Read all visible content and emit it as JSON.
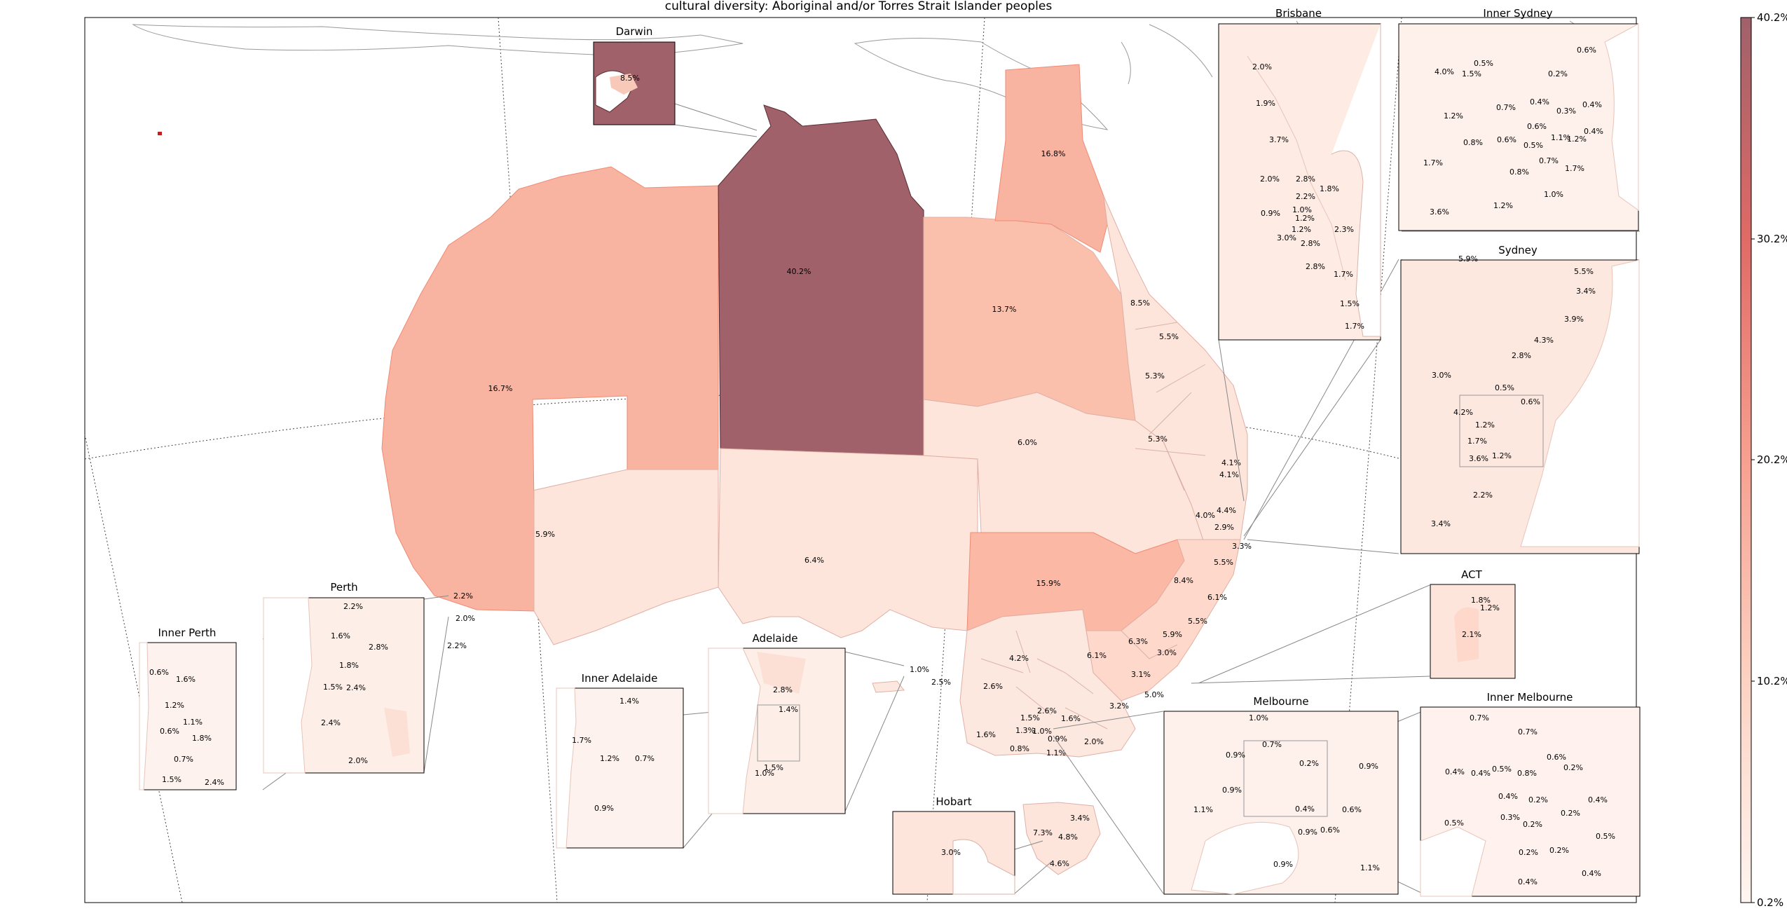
{
  "title": "cultural diversity: Aboriginal and/or Torres Strait Islander peoples",
  "colorbar": {
    "ticks": [
      "40.2%",
      "30.2%",
      "20.2%",
      "10.2%",
      "0.2%"
    ],
    "min": 0.2,
    "max": 40.2,
    "color_low": "#fff5f0",
    "color_high": "#a0616a"
  },
  "main_labels": {
    "nt": "40.2%",
    "wa_north": "16.7%",
    "qld_north": "13.7%",
    "cape_york": "16.8%",
    "wa_south": "5.9%",
    "sa": "6.4%",
    "nsw_west": "15.9%",
    "qld_west": "6.0%",
    "q1": "8.5%",
    "q2": "5.5%",
    "q3": "5.3%",
    "q4": "5.3%",
    "q5": "4.1%",
    "q6": "4.1%",
    "q7": "4.4%",
    "q8": "4.0%",
    "q9": "2.9%",
    "q10": "3.3%",
    "q11": "5.5%",
    "n1": "8.4%",
    "n2": "6.1%",
    "n3": "5.5%",
    "n4": "5.9%",
    "n5": "6.3%",
    "n6": "3.0%",
    "n7": "3.1%",
    "n8": "5.0%",
    "n9": "6.1%",
    "n10": "3.2%",
    "v1": "4.2%",
    "v2": "2.6%",
    "v3": "2.6%",
    "v4": "1.6%",
    "v5": "1.5%",
    "v6": "1.3%",
    "v7": "1.0%",
    "v8": "0.9%",
    "v9": "0.8%",
    "v10": "1.1%",
    "v11": "2.0%",
    "v12": "1.6%",
    "s1": "1.0%",
    "s2": "2.5%",
    "w1": "2.2%",
    "w2": "2.0%",
    "w3": "2.2%",
    "t1": "3.4%",
    "t2": "7.3%",
    "t3": "4.8%",
    "t4": "4.6%"
  },
  "insets": {
    "darwin": {
      "title": "Darwin",
      "labels": [
        "8.5%"
      ]
    },
    "brisbane": {
      "title": "Brisbane",
      "labels": [
        "2.0%",
        "1.9%",
        "3.7%",
        "2.0%",
        "2.8%",
        "1.8%",
        "2.2%",
        "0.9%",
        "1.0%",
        "1.2%",
        "1.2%",
        "2.3%",
        "3.0%",
        "2.8%",
        "2.8%",
        "1.7%",
        "1.5%",
        "1.7%"
      ]
    },
    "inner_sydney": {
      "title": "Inner Sydney",
      "labels": [
        "0.6%",
        "0.5%",
        "4.0%",
        "1.5%",
        "0.2%",
        "0.4%",
        "0.7%",
        "0.3%",
        "0.4%",
        "1.2%",
        "0.6%",
        "1.1%",
        "1.2%",
        "0.4%",
        "0.8%",
        "0.6%",
        "0.5%",
        "1.7%",
        "0.7%",
        "1.7%",
        "0.8%",
        "1.0%",
        "3.6%",
        "1.2%"
      ]
    },
    "sydney": {
      "title": "Sydney",
      "labels": [
        "5.9%",
        "5.5%",
        "3.4%",
        "3.9%",
        "4.3%",
        "2.8%",
        "3.0%",
        "0.5%",
        "0.6%",
        "4.2%",
        "1.2%",
        "1.7%",
        "3.6%",
        "1.2%",
        "2.2%",
        "3.4%"
      ]
    },
    "act": {
      "title": "ACT",
      "labels": [
        "1.8%",
        "1.2%",
        "2.1%"
      ]
    },
    "inner_melbourne": {
      "title": "Inner Melbourne",
      "labels": [
        "0.7%",
        "0.7%",
        "0.6%",
        "0.2%",
        "0.4%",
        "0.4%",
        "0.5%",
        "0.8%",
        "0.4%",
        "0.2%",
        "0.3%",
        "0.2%",
        "0.2%",
        "0.4%",
        "0.5%",
        "0.5%",
        "0.2%",
        "0.2%",
        "0.4%",
        "0.4%"
      ]
    },
    "melbourne": {
      "title": "Melbourne",
      "labels": [
        "1.0%",
        "0.7%",
        "0.9%",
        "0.2%",
        "0.9%",
        "0.9%",
        "1.1%",
        "0.4%",
        "0.6%",
        "0.9%",
        "0.6%",
        "0.9%",
        "1.1%"
      ]
    },
    "hobart": {
      "title": "Hobart",
      "labels": [
        "3.0%"
      ]
    },
    "adelaide": {
      "title": "Adelaide",
      "labels": [
        "2.8%",
        "1.4%",
        "1.5%",
        "1.0%"
      ]
    },
    "inner_adelaide": {
      "title": "Inner Adelaide",
      "labels": [
        "1.4%",
        "1.7%",
        "1.2%",
        "0.7%",
        "0.9%"
      ]
    },
    "perth": {
      "title": "Perth",
      "labels": [
        "2.2%",
        "1.6%",
        "2.8%",
        "1.8%",
        "1.5%",
        "2.4%",
        "2.4%",
        "2.0%"
      ]
    },
    "inner_perth": {
      "title": "Inner Perth",
      "labels": [
        "0.6%",
        "1.6%",
        "1.2%",
        "1.1%",
        "0.6%",
        "1.8%",
        "0.7%",
        "1.5%",
        "2.4%"
      ]
    }
  }
}
